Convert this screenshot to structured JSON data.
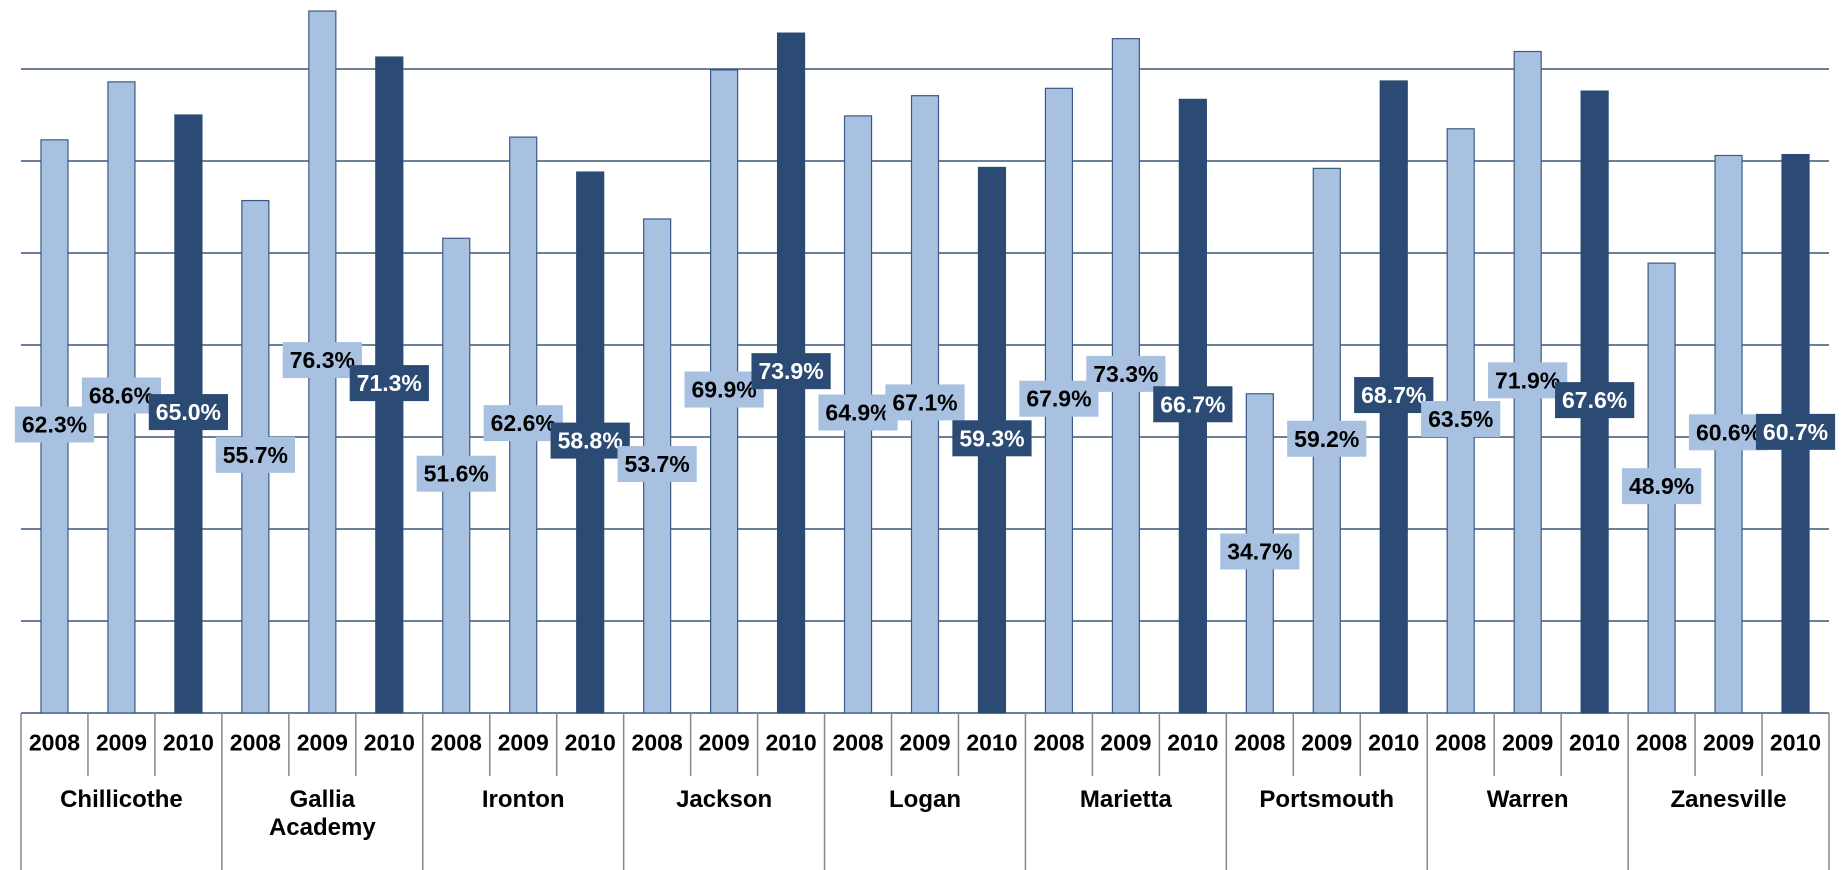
{
  "chart_data": {
    "type": "bar",
    "categories": [
      "Chillicothe",
      "Gallia Academy",
      "Ironton",
      "Jackson",
      "Logan",
      "Marietta",
      "Portsmouth",
      "Warren",
      "Zanesville"
    ],
    "series": [
      {
        "name": "2008",
        "color": "#a9c1e1",
        "values": [
          62.3,
          55.7,
          51.6,
          53.7,
          64.9,
          67.9,
          34.7,
          63.5,
          48.9
        ],
        "value_labels": [
          "62.3%",
          "55.7%",
          "51.6%",
          "53.7%",
          "64.9%",
          "67.9%",
          "34.7%",
          "63.5%",
          "48.9%"
        ]
      },
      {
        "name": "2009",
        "color": "#a9c1e1",
        "values": [
          68.6,
          76.3,
          62.6,
          69.9,
          67.1,
          73.3,
          59.2,
          71.9,
          60.6
        ],
        "value_labels": [
          "68.6%",
          "76.3%",
          "62.6%",
          "69.9%",
          "67.1%",
          "73.3%",
          "59.2%",
          "71.9%",
          "60.6%"
        ]
      },
      {
        "name": "2010",
        "color": "#2c4b74",
        "values": [
          65,
          71.3,
          58.8,
          73.9,
          59.3,
          66.7,
          68.7,
          67.6,
          60.7
        ],
        "value_labels": [
          "65.0%",
          "71.3%",
          "58.8%",
          "73.9%",
          "59.3%",
          "66.7%",
          "68.7%",
          "67.6%",
          "60.7%"
        ]
      }
    ],
    "ylim": [
      0,
      77.5
    ],
    "yticks": [
      0,
      10,
      20,
      30,
      40,
      50,
      60,
      70
    ],
    "grid": true
  }
}
